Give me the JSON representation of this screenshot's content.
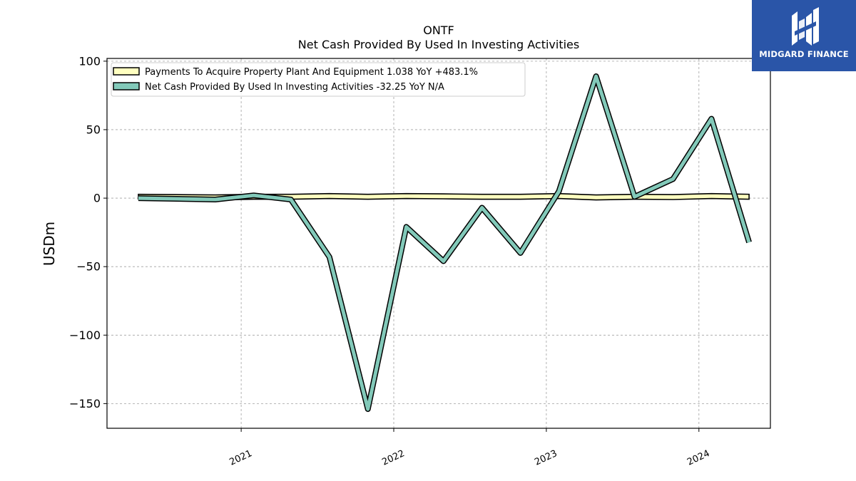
{
  "chart_data": {
    "type": "line",
    "title": "ONTF",
    "subtitle": "Net Cash Provided By Used In Investing Activities",
    "ylabel": "USDm",
    "xlabel": "",
    "ylim": [
      -168,
      102
    ],
    "yticks": [
      100,
      50,
      0,
      -50,
      -100,
      -150
    ],
    "ytick_labels": [
      "100",
      "50",
      "0",
      "−50",
      "−100",
      "−150"
    ],
    "xticks": [
      {
        "x": "2021-01-01",
        "label": "2021"
      },
      {
        "x": "2022-01-01",
        "label": "2022"
      },
      {
        "x": "2023-01-01",
        "label": "2023"
      },
      {
        "x": "2024-01-01",
        "label": "2024"
      }
    ],
    "xlim": [
      "2020-02-15",
      "2024-06-20"
    ],
    "grid": true,
    "legend_position": "top-left",
    "x": [
      "2020-04-30",
      "2020-07-31",
      "2020-10-31",
      "2021-01-31",
      "2021-04-30",
      "2021-07-31",
      "2021-10-31",
      "2022-01-31",
      "2022-04-30",
      "2022-07-31",
      "2022-10-31",
      "2023-01-31",
      "2023-04-30",
      "2023-07-31",
      "2023-10-31",
      "2024-01-31",
      "2024-04-30"
    ],
    "series": [
      {
        "name": "Payments To Acquire Property Plant And Equipment  1.038 YoY +483.1%",
        "style": "band",
        "color": "#ffffc0",
        "values": [
          1.0,
          0.8,
          0.5,
          1.0,
          1.0,
          1.5,
          1.0,
          1.5,
          1.3,
          1.0,
          1.0,
          1.5,
          0.5,
          1.0,
          0.8,
          1.5,
          1.038
        ],
        "band_half_width": 1.8
      },
      {
        "name": "Net Cash Provided By Used In Investing Activities  -32.25 YoY N/A",
        "style": "line",
        "color": "#82c9b9",
        "values": [
          0.0,
          -0.5,
          -1.0,
          2.0,
          -1.0,
          -43.0,
          -154.0,
          -21.0,
          -46.0,
          -7.0,
          -40.0,
          5.0,
          89.0,
          1.0,
          14.0,
          58.0,
          -32.25
        ]
      }
    ]
  },
  "logo": {
    "brand_text": "MIDGARD FINANCE"
  }
}
